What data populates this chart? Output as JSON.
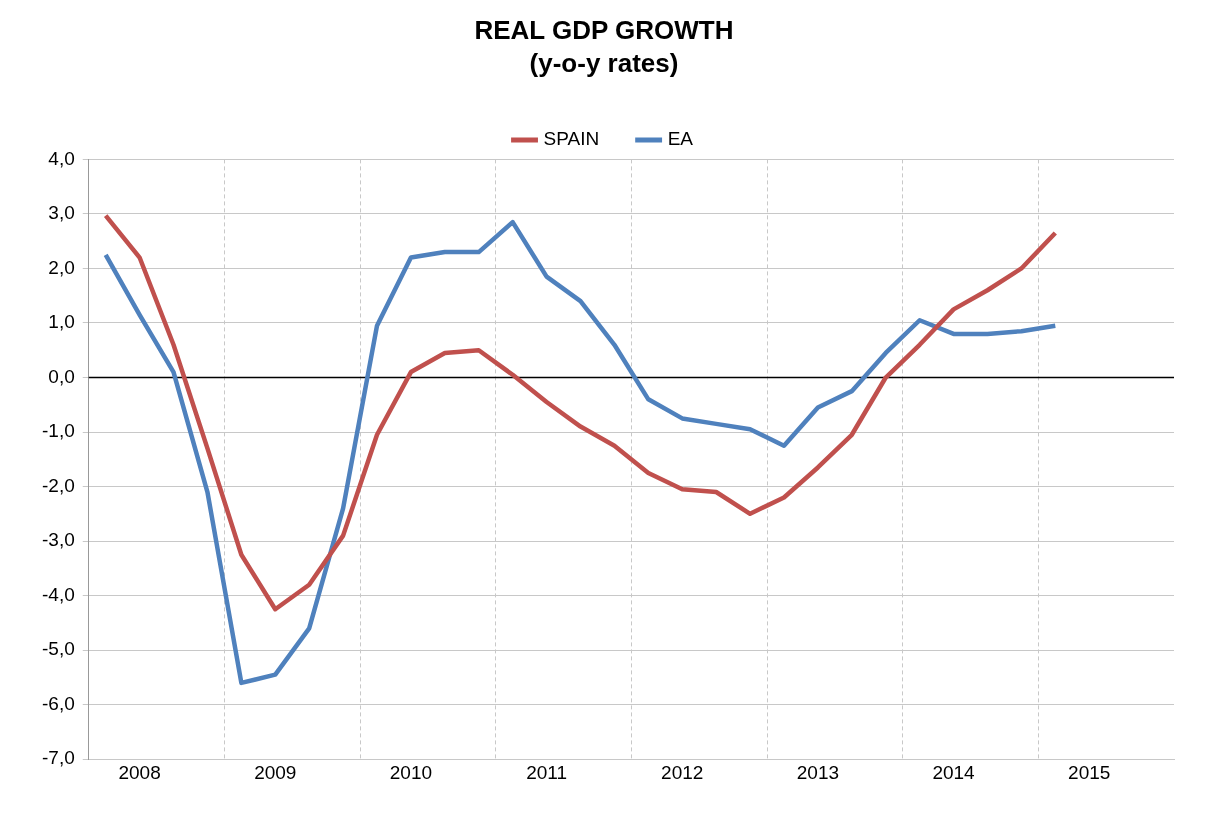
{
  "chart_data": {
    "type": "line",
    "title": "REAL GDP GROWTH",
    "subtitle": "(y-o-y rates)",
    "categories": [
      null,
      "2008",
      null,
      null,
      null,
      "2009",
      null,
      null,
      null,
      "2010",
      null,
      null,
      null,
      "2011",
      null,
      null,
      null,
      "2012",
      null,
      null,
      null,
      "2013",
      null,
      null,
      null,
      "2014",
      null,
      null,
      null,
      "2015",
      null,
      null
    ],
    "series": [
      {
        "name": "SPAIN",
        "color": "#c0504d",
        "values": [
          2.97,
          2.2,
          0.6,
          -1.3,
          -3.25,
          -4.25,
          -3.8,
          -2.9,
          -1.05,
          0.1,
          0.45,
          0.5,
          0.05,
          -0.45,
          -0.9,
          -1.25,
          -1.75,
          -2.05,
          -2.1,
          -2.5,
          -2.2,
          -1.65,
          -1.05,
          0.0,
          0.6,
          1.25,
          1.6,
          2.0,
          2.65,
          null,
          null,
          null
        ]
      },
      {
        "name": "EA",
        "color": "#4f81bd",
        "values": [
          2.25,
          1.15,
          0.1,
          -2.1,
          -5.6,
          -5.45,
          -4.6,
          -2.4,
          0.95,
          2.2,
          2.3,
          2.3,
          2.85,
          1.85,
          1.4,
          0.6,
          -0.4,
          -0.75,
          -0.85,
          -0.95,
          -1.25,
          -0.55,
          -0.25,
          0.45,
          1.05,
          0.8,
          0.8,
          0.85,
          0.95,
          null,
          null,
          null
        ]
      }
    ],
    "ylim": [
      -7,
      4
    ],
    "yticks": [
      {
        "value": -7,
        "label": "-7,0"
      },
      {
        "value": -6,
        "label": "-6,0"
      },
      {
        "value": -5,
        "label": "-5,0"
      },
      {
        "value": -4,
        "label": "-4,0"
      },
      {
        "value": -3,
        "label": "-3,0"
      },
      {
        "value": -2,
        "label": "-2,0"
      },
      {
        "value": -1,
        "label": "-1,0"
      },
      {
        "value": 0,
        "label": "0,0"
      },
      {
        "value": 1,
        "label": "1,0"
      },
      {
        "value": 2,
        "label": "2,0"
      },
      {
        "value": 3,
        "label": "3,0"
      },
      {
        "value": 4,
        "label": "4,0"
      }
    ],
    "ref_lines": [
      {
        "axis": "y",
        "value": 0,
        "color": "#000000"
      }
    ],
    "grid": true,
    "legend": "top",
    "marker": "none",
    "line_style": "solid"
  }
}
